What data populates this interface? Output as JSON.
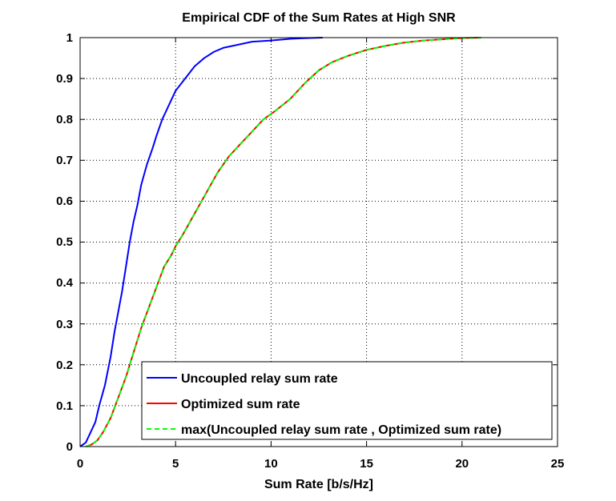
{
  "chart_data": {
    "type": "line",
    "title": "Empirical CDF of the Sum Rates at High SNR",
    "xlabel": "Sum Rate [b/s/Hz]",
    "ylabel": "",
    "xlim": [
      0,
      25
    ],
    "ylim": [
      0,
      1
    ],
    "x_ticks": [
      "0",
      "5",
      "10",
      "15",
      "20",
      "25"
    ],
    "y_ticks": [
      "0",
      "0.1",
      "0.2",
      "0.3",
      "0.4",
      "0.5",
      "0.6",
      "0.7",
      "0.8",
      "0.9",
      "1"
    ],
    "grid": true,
    "grid_style": "dotted",
    "legend_position": "bottom-right",
    "series": [
      {
        "name": "Uncoupled relay sum rate",
        "color": "#0000ff",
        "style": "solid",
        "x": [
          0,
          0.3,
          0.5,
          0.8,
          1.0,
          1.3,
          1.6,
          1.8,
          2.0,
          2.2,
          2.4,
          2.6,
          2.8,
          3.0,
          3.2,
          3.5,
          3.8,
          4.0,
          4.3,
          4.6,
          5.0,
          5.5,
          6.0,
          6.5,
          7.0,
          7.5,
          8.0,
          9.0,
          10.0,
          11.0,
          12.0,
          12.7
        ],
        "y": [
          0,
          0.01,
          0.03,
          0.06,
          0.1,
          0.15,
          0.22,
          0.28,
          0.33,
          0.38,
          0.44,
          0.5,
          0.55,
          0.59,
          0.64,
          0.69,
          0.73,
          0.76,
          0.8,
          0.83,
          0.87,
          0.9,
          0.93,
          0.95,
          0.965,
          0.975,
          0.98,
          0.99,
          0.993,
          0.997,
          0.999,
          1.0
        ]
      },
      {
        "name": "Optimized sum rate",
        "color": "#ff0000",
        "style": "solid",
        "x": [
          0.3,
          0.6,
          0.9,
          1.2,
          1.6,
          2.0,
          2.4,
          2.8,
          3.2,
          3.6,
          4.0,
          4.4,
          4.8,
          5.0,
          5.4,
          6.0,
          6.6,
          7.2,
          7.8,
          8.4,
          9.0,
          9.6,
          10.2,
          11.0,
          11.8,
          12.5,
          13.2,
          14.0,
          15.0,
          16.0,
          17.0,
          18.0,
          19.0,
          20.0,
          21.0
        ],
        "y": [
          0,
          0.005,
          0.015,
          0.035,
          0.07,
          0.12,
          0.17,
          0.23,
          0.29,
          0.34,
          0.39,
          0.44,
          0.47,
          0.49,
          0.52,
          0.57,
          0.62,
          0.67,
          0.71,
          0.74,
          0.77,
          0.8,
          0.82,
          0.85,
          0.89,
          0.92,
          0.94,
          0.955,
          0.97,
          0.98,
          0.988,
          0.993,
          0.996,
          0.999,
          1.0
        ]
      },
      {
        "name": "max(Uncoupled relay sum rate , Optimized sum rate)",
        "color": "#00ff00",
        "style": "dashed",
        "x": [
          0.3,
          0.6,
          0.9,
          1.2,
          1.6,
          2.0,
          2.4,
          2.8,
          3.2,
          3.6,
          4.0,
          4.4,
          4.8,
          5.0,
          5.4,
          6.0,
          6.6,
          7.2,
          7.8,
          8.4,
          9.0,
          9.6,
          10.2,
          11.0,
          11.8,
          12.5,
          13.2,
          14.0,
          15.0,
          16.0,
          17.0,
          18.0,
          19.0,
          20.0,
          21.0
        ],
        "y": [
          0,
          0.005,
          0.015,
          0.035,
          0.07,
          0.12,
          0.17,
          0.23,
          0.29,
          0.34,
          0.39,
          0.44,
          0.47,
          0.49,
          0.52,
          0.57,
          0.62,
          0.67,
          0.71,
          0.74,
          0.77,
          0.8,
          0.82,
          0.85,
          0.89,
          0.92,
          0.94,
          0.955,
          0.97,
          0.98,
          0.988,
          0.993,
          0.996,
          0.999,
          1.0
        ]
      }
    ]
  }
}
